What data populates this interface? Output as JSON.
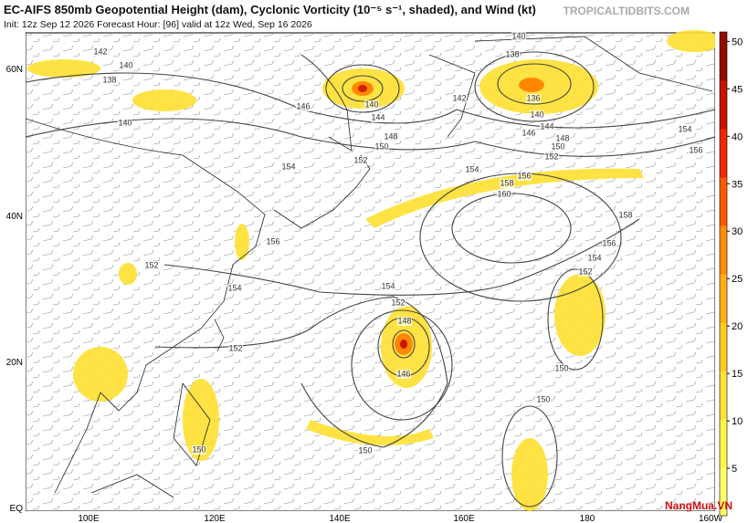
{
  "header": {
    "title": "EC-AIFS 850mb Geopotential Height (dam), Cyclonic Vorticity (10⁻⁵ s⁻¹, shaded), and Wind (kt)",
    "subtitle": "Init: 12z Sep 12 2026   Forecast Hour: [96]   valid at 12z Wed, Sep 16 2026",
    "source": "TROPICALTIDBITS.COM"
  },
  "lat_labels": [
    "60N",
    "40N",
    "20N",
    "EQ"
  ],
  "lon_labels": [
    "100E",
    "120E",
    "140E",
    "160E",
    "180",
    "160W"
  ],
  "colorbar": {
    "range": [
      0,
      51
    ],
    "ticks": [
      5,
      10,
      15,
      20,
      25,
      30,
      35,
      40,
      45,
      50
    ],
    "colors": [
      "#ffff66",
      "#fff24a",
      "#ffe23a",
      "#ffcc22",
      "#ffae14",
      "#ff8c0a",
      "#ff5a00",
      "#f02800",
      "#c81400",
      "#960a00"
    ]
  },
  "contour_labels": [
    "142",
    "140",
    "138",
    "140",
    "146",
    "140",
    "144",
    "148",
    "150",
    "152",
    "154",
    "156",
    "152",
    "154",
    "152",
    "150",
    "148",
    "146",
    "152",
    "154",
    "150",
    "150",
    "150",
    "152",
    "154",
    "156",
    "158",
    "160",
    "158",
    "156",
    "154",
    "152",
    "150",
    "148",
    "146",
    "144",
    "140",
    "136",
    "138",
    "140",
    "142",
    "154",
    "156"
  ],
  "watermark": "NangMua.VN"
}
